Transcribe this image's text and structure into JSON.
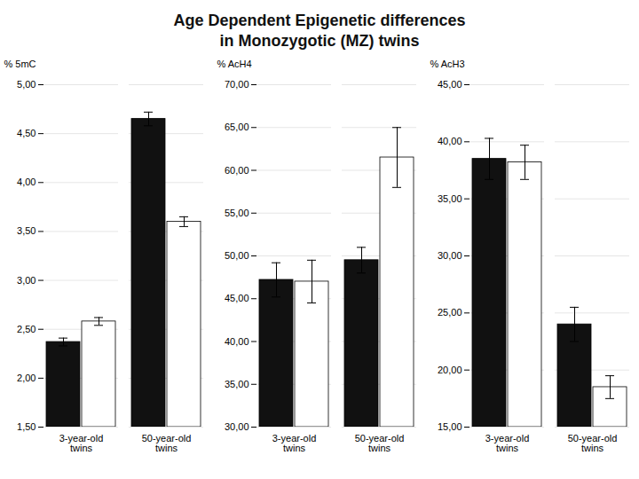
{
  "title": "Age Dependent Epigenetic differences\nin Monozygotic (MZ) twins",
  "chart_data": [
    {
      "type": "bar",
      "ylabel": "% 5mC",
      "categories": [
        "3-year-old\ntwins",
        "50-year-old\ntwins"
      ],
      "series": [
        {
          "color": "#111111",
          "values": [
            2.37,
            4.65
          ],
          "errors": [
            0.04,
            0.07
          ]
        },
        {
          "color": "#ffffff",
          "values": [
            2.58,
            3.6
          ],
          "errors": [
            0.04,
            0.05
          ]
        }
      ],
      "ylim": [
        1.5,
        5.0
      ],
      "yticks": [
        {
          "value": 1.5,
          "label": "1,50"
        },
        {
          "value": 2.0,
          "label": "2,00"
        },
        {
          "value": 2.5,
          "label": "2,50"
        },
        {
          "value": 3.0,
          "label": "3,00"
        },
        {
          "value": 3.5,
          "label": "3,50"
        },
        {
          "value": 4.0,
          "label": "4,00"
        },
        {
          "value": 4.5,
          "label": "4,50"
        },
        {
          "value": 5.0,
          "label": "5,00"
        }
      ],
      "grid": true
    },
    {
      "type": "bar",
      "ylabel": "% AcH4",
      "categories": [
        "3-year-old\ntwins",
        "50-year-old\ntwins"
      ],
      "series": [
        {
          "color": "#111111",
          "values": [
            47.2,
            49.5
          ],
          "errors": [
            2.0,
            1.5
          ]
        },
        {
          "color": "#ffffff",
          "values": [
            47.0,
            61.5
          ],
          "errors": [
            2.5,
            3.5
          ]
        }
      ],
      "ylim": [
        30.0,
        70.0
      ],
      "yticks": [
        {
          "value": 30.0,
          "label": "30,00"
        },
        {
          "value": 35.0,
          "label": "35,00"
        },
        {
          "value": 40.0,
          "label": "40,00"
        },
        {
          "value": 45.0,
          "label": "45,00"
        },
        {
          "value": 50.0,
          "label": "50,00"
        },
        {
          "value": 55.0,
          "label": "55,00"
        },
        {
          "value": 60.0,
          "label": "60,00"
        },
        {
          "value": 65.0,
          "label": "65,00"
        },
        {
          "value": 70.0,
          "label": "70,00"
        }
      ],
      "grid": true
    },
    {
      "type": "bar",
      "ylabel": "% AcH3",
      "categories": [
        "3-year-old\ntwins",
        "50-year-old\ntwins"
      ],
      "series": [
        {
          "color": "#111111",
          "values": [
            38.5,
            24.0
          ],
          "errors": [
            1.8,
            1.5
          ]
        },
        {
          "color": "#ffffff",
          "values": [
            38.2,
            18.5
          ],
          "errors": [
            1.5,
            1.0
          ]
        }
      ],
      "ylim": [
        15.0,
        45.0
      ],
      "yticks": [
        {
          "value": 15.0,
          "label": "15,00"
        },
        {
          "value": 20.0,
          "label": "20,00"
        },
        {
          "value": 25.0,
          "label": "25,00"
        },
        {
          "value": 30.0,
          "label": "30,00"
        },
        {
          "value": 35.0,
          "label": "35,00"
        },
        {
          "value": 40.0,
          "label": "40,00"
        },
        {
          "value": 45.0,
          "label": "45,00"
        }
      ],
      "grid": true
    }
  ]
}
